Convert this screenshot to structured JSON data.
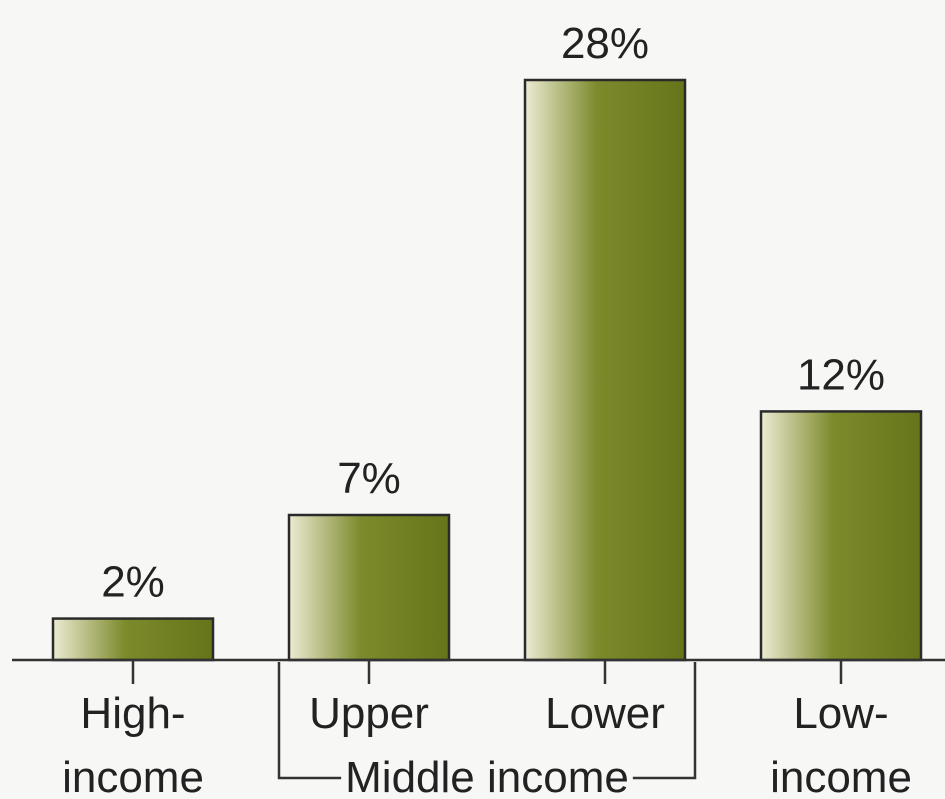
{
  "chart_data": {
    "type": "bar",
    "categories": [
      "High-\nincome",
      "Upper",
      "Lower",
      "Low-\nincome"
    ],
    "values": [
      2,
      7,
      28,
      12
    ],
    "value_labels": [
      "2%",
      "7%",
      "28%",
      "12%"
    ],
    "color": "#6b7a1e",
    "groups": [
      {
        "name": "Middle income",
        "from": "Upper",
        "to": "Lower"
      }
    ]
  }
}
